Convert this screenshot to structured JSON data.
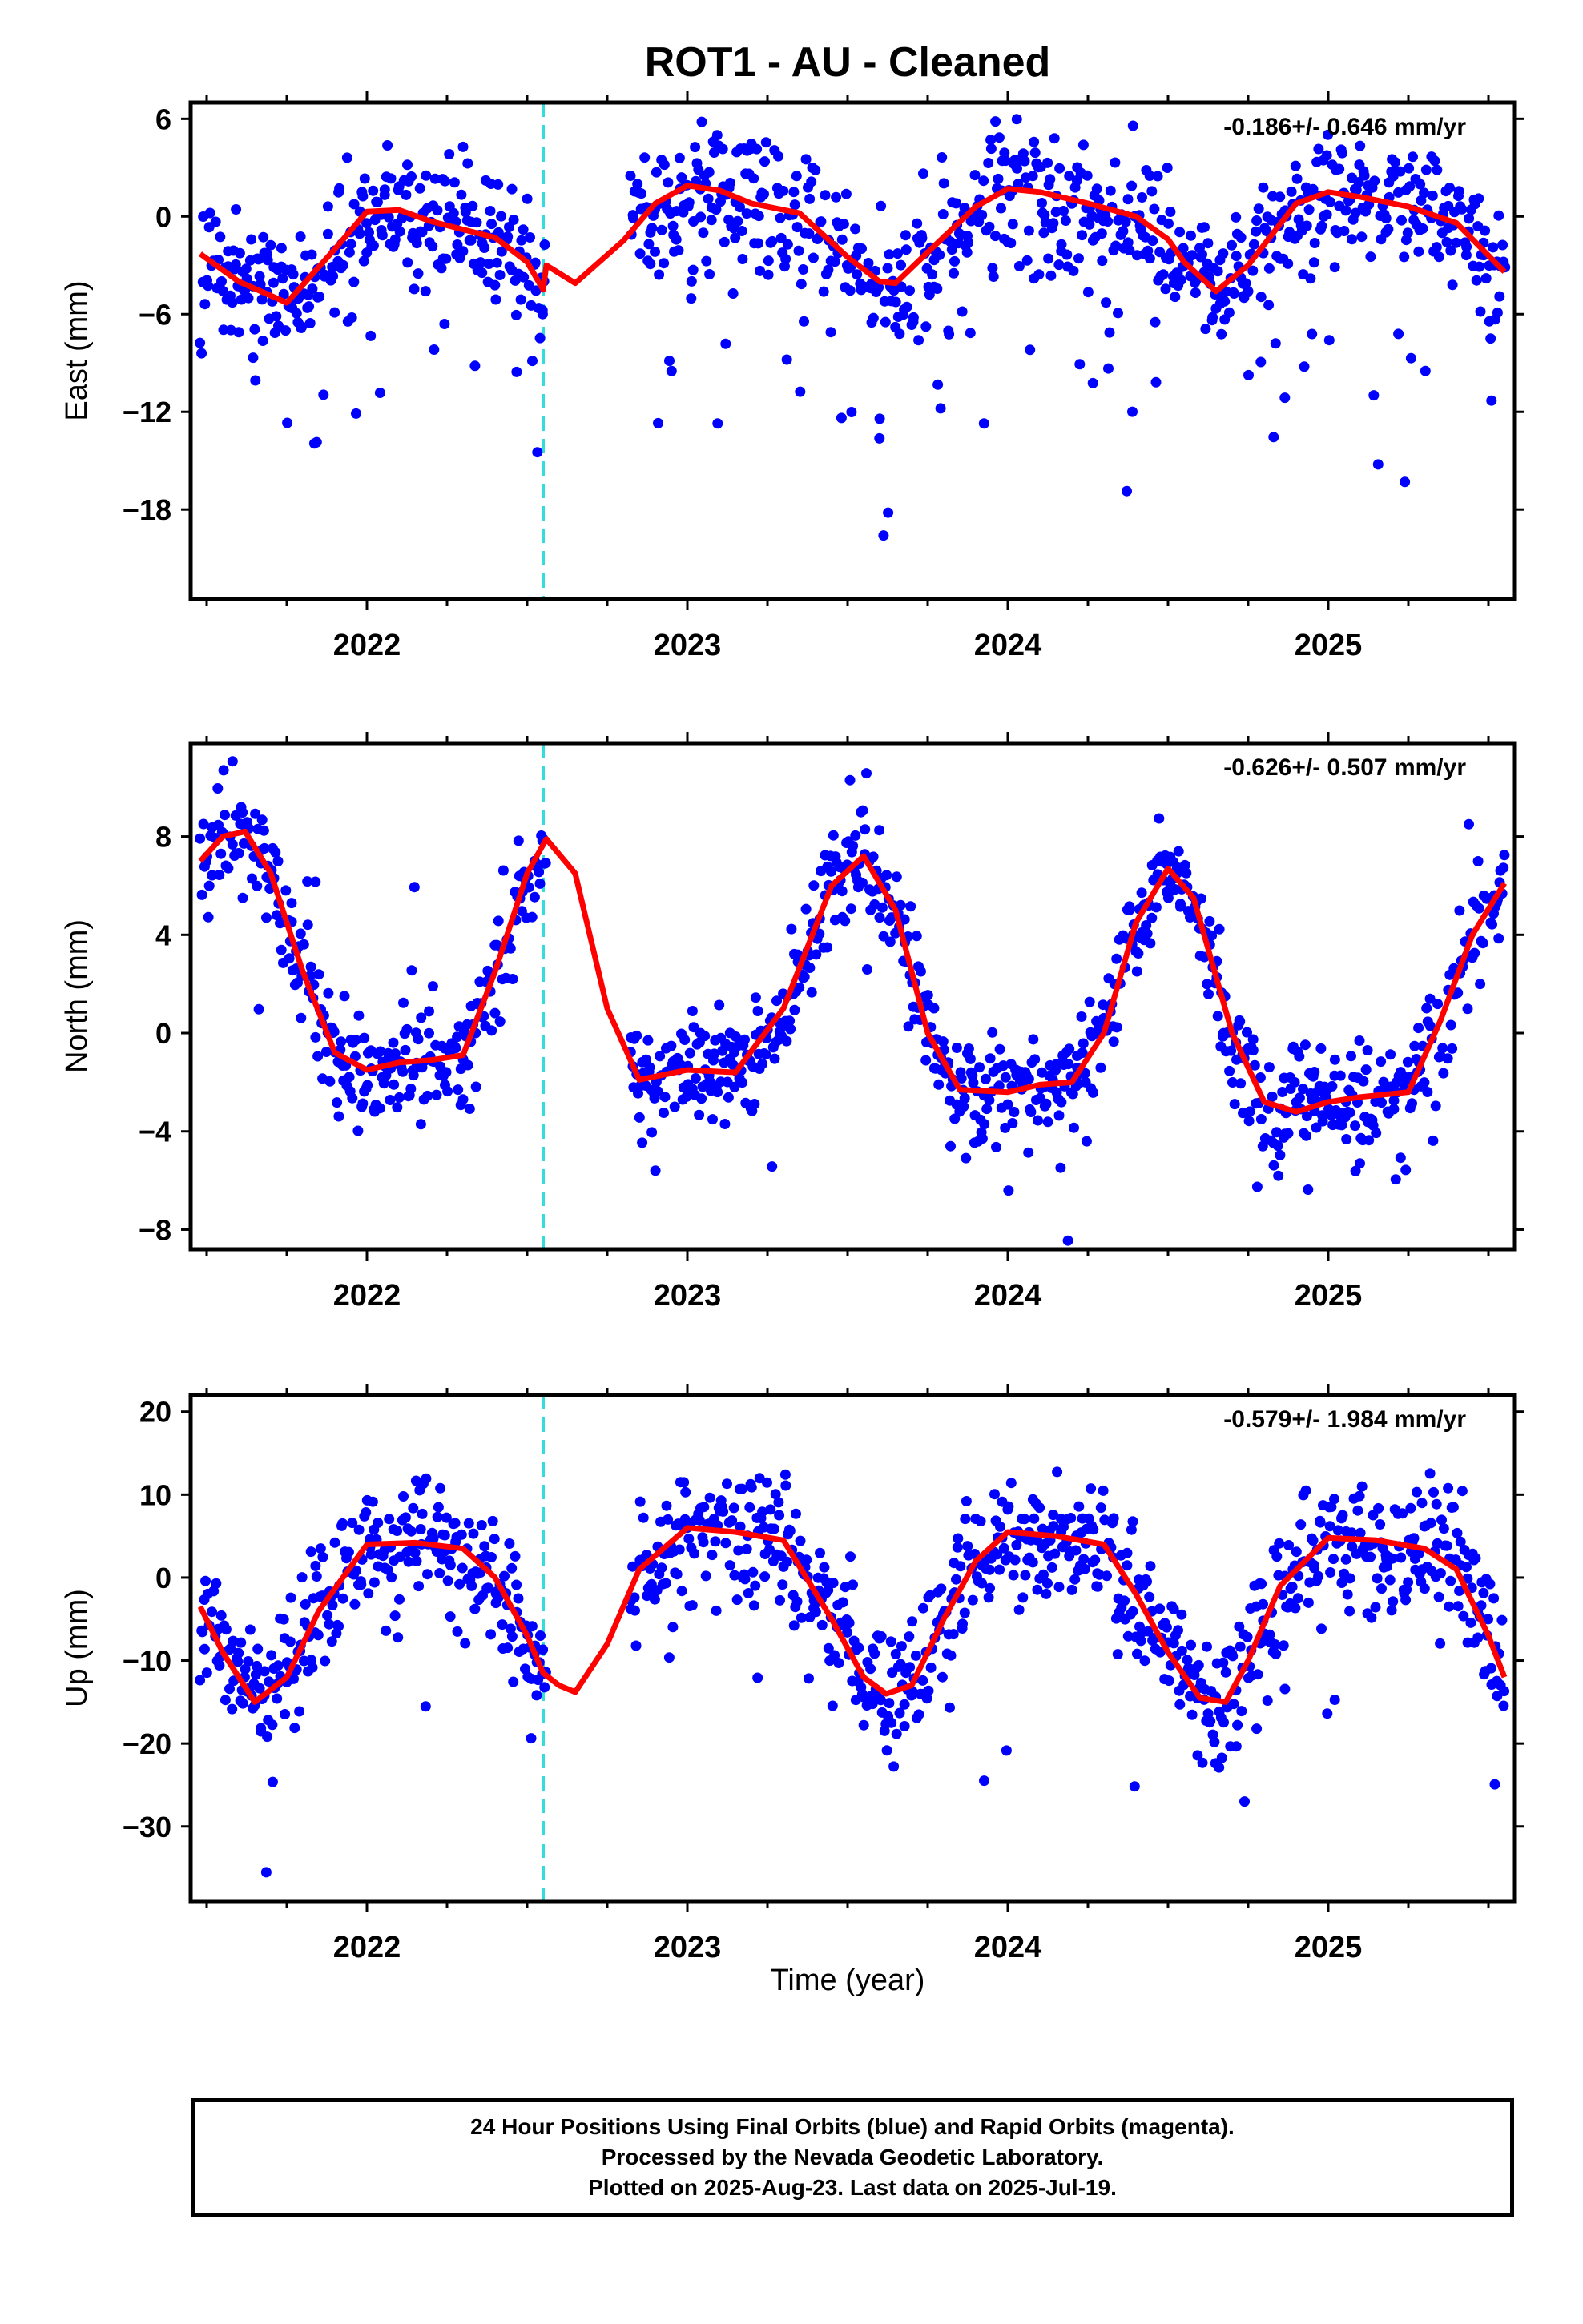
{
  "title": "ROT1  - AU - Cleaned",
  "xaxis_label": "Time (year)",
  "colors": {
    "points": "#0000ff",
    "fit": "#ff0000",
    "event_line": "#33dddd"
  },
  "chart_data": [
    {
      "type": "scatter",
      "name": "east",
      "ylabel": "East (mm)",
      "rate_label": "-0.186+/- 0.646 mm/yr",
      "xlim": [
        2021.45,
        2025.58
      ],
      "ylim": [
        -23.5,
        7.0
      ],
      "yticks": [
        6,
        0,
        -6,
        -12,
        -18
      ],
      "ytick_labels": [
        "6",
        "0",
        "-6",
        "-12",
        "-18"
      ],
      "xticks": [
        2022,
        2023,
        2024,
        2025
      ],
      "xtick_labels": [
        "2022",
        "2023",
        "2024",
        "2025"
      ],
      "event_x": 2022.55,
      "gap": [
        2022.56,
        2022.82
      ],
      "data_range": [
        2021.48,
        2025.55
      ],
      "fit": {
        "x": [
          2021.48,
          2021.6,
          2021.75,
          2021.9,
          2022.0,
          2022.1,
          2022.2,
          2022.3,
          2022.4,
          2022.5,
          2022.55,
          2022.56,
          2022.65,
          2022.8,
          2022.9,
          2023.0,
          2023.1,
          2023.2,
          2023.35,
          2023.5,
          2023.6,
          2023.65,
          2023.75,
          2023.9,
          2024.0,
          2024.1,
          2024.25,
          2024.4,
          2024.5,
          2024.55,
          2024.65,
          2024.75,
          2024.9,
          2025.0,
          2025.1,
          2025.25,
          2025.4,
          2025.55
        ],
        "y": [
          -2.3,
          -4.0,
          -5.3,
          -2.0,
          0.3,
          0.4,
          -0.3,
          -0.8,
          -1.3,
          -2.8,
          -4.5,
          -3.0,
          -4.1,
          -1.5,
          0.8,
          1.9,
          1.6,
          0.8,
          0.2,
          -2.5,
          -4.0,
          -4.1,
          -2.2,
          0.6,
          1.7,
          1.5,
          0.8,
          0.0,
          -1.4,
          -2.8,
          -4.6,
          -3.0,
          0.8,
          1.5,
          1.2,
          0.6,
          -0.4,
          -3.4
        ]
      },
      "scatter": {
        "seed": 11,
        "count": 1150,
        "sigma": 1.9,
        "outlier_rate": 0.12,
        "outlier_scale": 7,
        "outlier_bias": -1
      }
    },
    {
      "type": "scatter",
      "name": "north",
      "ylabel": "North (mm)",
      "rate_label": "-0.626+/- 0.507 mm/yr",
      "xlim": [
        2021.45,
        2025.58
      ],
      "ylim": [
        -8.8,
        11.8
      ],
      "yticks": [
        8,
        4,
        0,
        -4,
        -8
      ],
      "ytick_labels": [
        "8",
        "4",
        "0",
        "-4",
        "-8"
      ],
      "xticks": [
        2022,
        2023,
        2024,
        2025
      ],
      "xtick_labels": [
        "2022",
        "2023",
        "2024",
        "2025"
      ],
      "event_x": 2022.55,
      "gap": [
        2022.56,
        2022.82
      ],
      "data_range": [
        2021.48,
        2025.55
      ],
      "fit": {
        "x": [
          2021.48,
          2021.55,
          2021.62,
          2021.7,
          2021.8,
          2021.9,
          2022.0,
          2022.1,
          2022.2,
          2022.3,
          2022.4,
          2022.5,
          2022.56,
          2022.65,
          2022.75,
          2022.85,
          2023.0,
          2023.15,
          2023.3,
          2023.45,
          2023.55,
          2023.65,
          2023.75,
          2023.85,
          2024.0,
          2024.1,
          2024.2,
          2024.3,
          2024.4,
          2024.5,
          2024.58,
          2024.7,
          2024.8,
          2024.9,
          2025.0,
          2025.1,
          2025.25,
          2025.35,
          2025.45,
          2025.55
        ],
        "y": [
          7.0,
          8.0,
          8.2,
          6.5,
          2.5,
          -0.8,
          -1.5,
          -1.2,
          -1.1,
          -0.9,
          2.5,
          6.5,
          7.9,
          6.5,
          1.0,
          -1.9,
          -1.5,
          -1.6,
          1.0,
          6.0,
          7.2,
          5.0,
          0.0,
          -2.3,
          -2.4,
          -2.1,
          -2.0,
          0.0,
          4.5,
          6.7,
          5.5,
          0.0,
          -2.8,
          -3.2,
          -2.8,
          -2.6,
          -2.4,
          0.5,
          4.0,
          6.1
        ]
      },
      "scatter": {
        "seed": 23,
        "count": 1150,
        "sigma": 1.1,
        "outlier_rate": 0.05,
        "outlier_scale": 3,
        "outlier_bias": 0
      }
    },
    {
      "type": "scatter",
      "name": "up",
      "ylabel": "Up (mm)",
      "rate_label": "-0.579+/- 1.984 mm/yr",
      "xlim": [
        2021.45,
        2025.58
      ],
      "ylim": [
        -39.0,
        22.0
      ],
      "yticks": [
        20,
        10,
        0,
        -10,
        -20,
        -30
      ],
      "ytick_labels": [
        "20",
        "10",
        "0",
        "-10",
        "-20",
        "-30"
      ],
      "xticks": [
        2022,
        2023,
        2024,
        2025
      ],
      "xtick_labels": [
        "2022",
        "2023",
        "2024",
        "2025"
      ],
      "event_x": 2022.55,
      "gap": [
        2022.56,
        2022.82
      ],
      "data_range": [
        2021.48,
        2025.55
      ],
      "fit": {
        "x": [
          2021.48,
          2021.55,
          2021.65,
          2021.75,
          2021.85,
          2022.0,
          2022.15,
          2022.3,
          2022.4,
          2022.5,
          2022.55,
          2022.6,
          2022.65,
          2022.75,
          2022.85,
          2023.0,
          2023.15,
          2023.3,
          2023.45,
          2023.55,
          2023.62,
          2023.7,
          2023.8,
          2023.9,
          2024.0,
          2024.15,
          2024.3,
          2024.4,
          2024.5,
          2024.6,
          2024.68,
          2024.75,
          2024.85,
          2025.0,
          2025.15,
          2025.3,
          2025.4,
          2025.5,
          2025.55
        ],
        "y": [
          -3.5,
          -9.0,
          -15.0,
          -12.0,
          -4.0,
          4.0,
          4.2,
          3.5,
          0.0,
          -7.0,
          -11.5,
          -13.0,
          -13.8,
          -8.0,
          1.0,
          6.0,
          5.5,
          4.5,
          -5.0,
          -12.0,
          -14.0,
          -13.0,
          -5.0,
          2.0,
          5.5,
          5.0,
          4.0,
          -2.0,
          -9.0,
          -14.5,
          -15.0,
          -10.0,
          -1.0,
          4.8,
          4.5,
          3.5,
          1.0,
          -7.0,
          -12.0
        ]
      },
      "scatter": {
        "seed": 37,
        "count": 1150,
        "sigma": 3.8,
        "outlier_rate": 0.06,
        "outlier_scale": 10,
        "outlier_bias": -1
      }
    }
  ],
  "footer": {
    "line1": "24 Hour Positions Using Final Orbits (blue) and Rapid Orbits (magenta).",
    "line2": "Processed by the Nevada Geodetic Laboratory.",
    "line3": "Plotted on 2025-Aug-23. Last data on 2025-Jul-19."
  }
}
